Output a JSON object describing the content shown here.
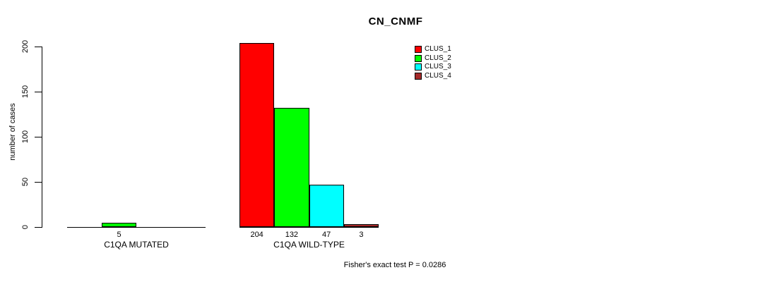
{
  "title": "CN_CNMF",
  "y_axis": {
    "label": "number of cases",
    "tick_labels": [
      "0",
      "50",
      "100",
      "150",
      "200"
    ]
  },
  "legend": {
    "items": [
      {
        "label": "CLUS_1",
        "color": "#FF0000"
      },
      {
        "label": "CLUS_2",
        "color": "#00FF00"
      },
      {
        "label": "CLUS_3",
        "color": "#00FFFF"
      },
      {
        "label": "CLUS_4",
        "color": "#A52A2A"
      }
    ]
  },
  "annotation": "Fisher's exact test P = 0.0286",
  "chart_data": {
    "type": "bar",
    "title": "CN_CNMF",
    "xlabel": "",
    "ylabel": "number of cases",
    "ylim": [
      0,
      210
    ],
    "yticks": [
      0,
      50,
      100,
      150,
      200
    ],
    "grid": false,
    "legend_position": "top-right",
    "categories": [
      "C1QA MUTATED",
      "C1QA WILD-TYPE"
    ],
    "series": [
      {
        "name": "CLUS_1",
        "color": "#FF0000",
        "values": [
          0,
          204
        ]
      },
      {
        "name": "CLUS_2",
        "color": "#00FF00",
        "values": [
          5,
          132
        ]
      },
      {
        "name": "CLUS_3",
        "color": "#00FFFF",
        "values": [
          0,
          47
        ]
      },
      {
        "name": "CLUS_4",
        "color": "#A52A2A",
        "values": [
          0,
          3
        ]
      }
    ],
    "bar_value_labels": [
      [
        "",
        "5",
        "",
        ""
      ],
      [
        "204",
        "132",
        "47",
        "3"
      ]
    ],
    "annotation": "Fisher's exact test P = 0.0286"
  }
}
